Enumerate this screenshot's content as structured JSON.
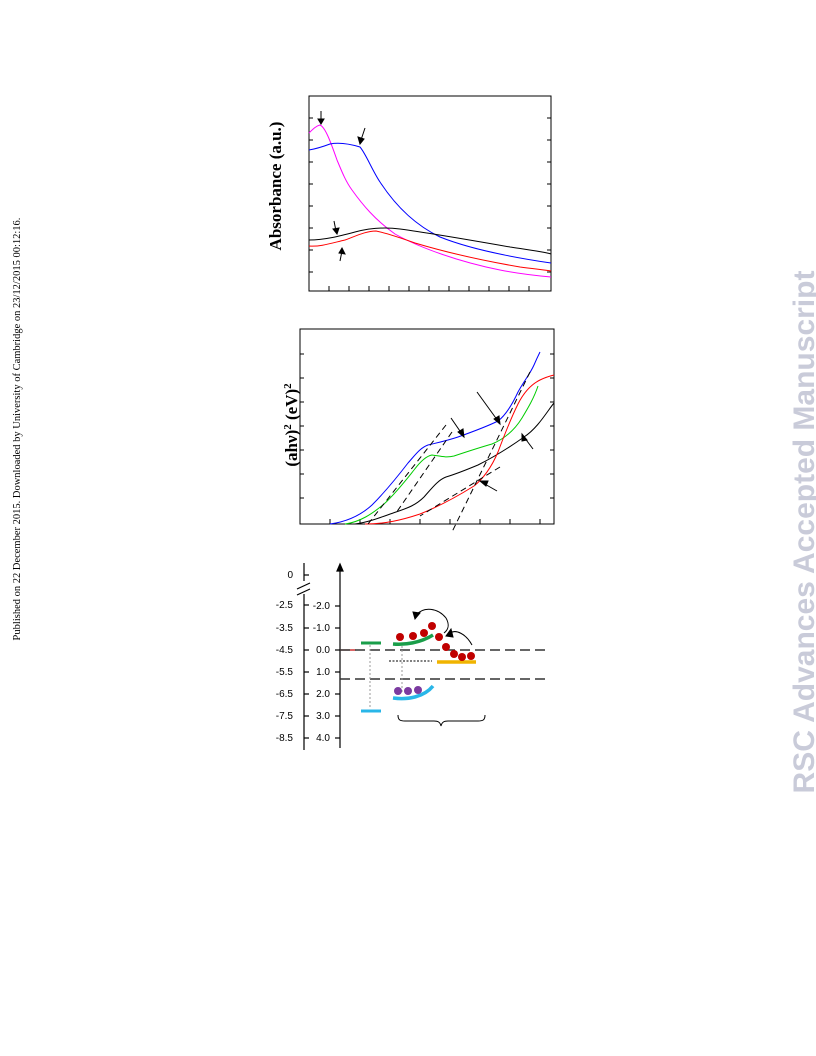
{
  "margin_note": "Published on 22 December 2015. Downloaded by University of Cambridge on 23/12/2015 00:12:16.",
  "watermark": "RSC Advances Accepted Manuscript",
  "panel_a": {
    "ylabel": "Absorbance (a.u.)",
    "series_colors": [
      "#ff00ff",
      "#0000ff",
      "#000000",
      "#ff0000"
    ]
  },
  "panel_b": {
    "ylabel": "(ahν)² (eV)²",
    "ylabel_base": "(ahν)",
    "ylabel_exp1": "2",
    "ylabel_mid": " (eV)",
    "ylabel_exp2": "2",
    "series_colors": [
      "#0000ff",
      "#00cc00",
      "#000000",
      "#ff0000"
    ]
  },
  "panel_c": {
    "left_axis_ticks": [
      "0",
      "-2.5",
      "-3.5",
      "-4.5",
      "-5.5",
      "-6.5",
      "-7.5",
      "-8.5"
    ],
    "right_axis_ticks": [
      "-2.0",
      "-1.0",
      "0.0",
      "1.0",
      "2.0",
      "3.0",
      "4.0"
    ],
    "colors": {
      "cb": "#1a9e4a",
      "vb": "#29b6e8",
      "electron": "#c00000",
      "hole": "#7b3aa0",
      "level": "#f0b400"
    }
  }
}
